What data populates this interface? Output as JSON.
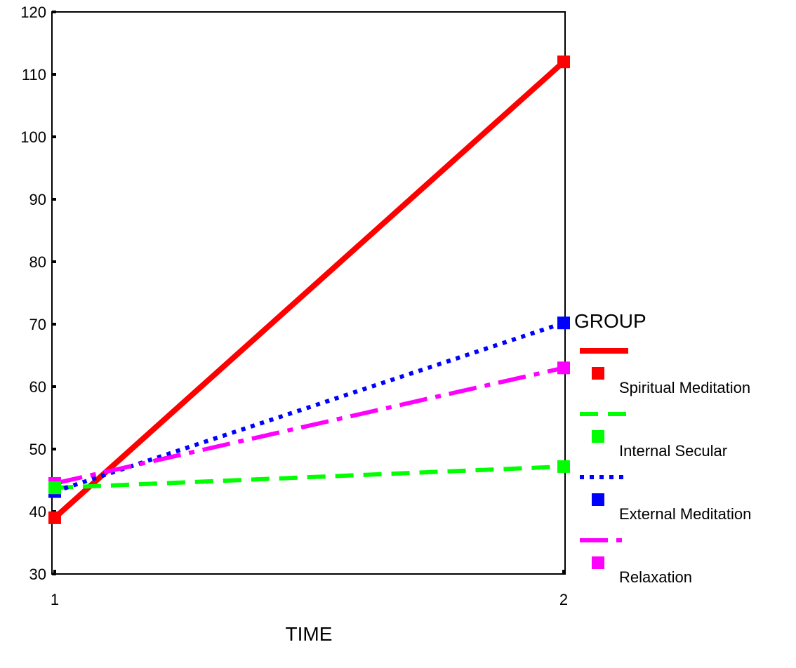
{
  "chart_data": {
    "type": "line",
    "title": "",
    "xlabel": "TIME",
    "ylabel": "",
    "categories": [
      "1",
      "2"
    ],
    "ylim": [
      30,
      120
    ],
    "yticks": [
      30,
      40,
      50,
      60,
      70,
      80,
      90,
      100,
      110,
      120
    ],
    "grid": false,
    "legend": {
      "title": "GROUP",
      "placement": "right"
    },
    "series": [
      {
        "name": "Spiritual Meditation",
        "values": [
          39,
          112
        ],
        "color": "#ff0000",
        "dash": "solid"
      },
      {
        "name": "Internal Secular",
        "values": [
          43.8,
          47.2
        ],
        "color": "#00ff00",
        "dash": "dashed"
      },
      {
        "name": "External Meditation",
        "values": [
          43.2,
          70.2
        ],
        "color": "#0000ff",
        "dash": "dotted"
      },
      {
        "name": "Relaxation",
        "values": [
          44.5,
          63
        ],
        "color": "#ff00ff",
        "dash": "dashdot"
      }
    ]
  }
}
